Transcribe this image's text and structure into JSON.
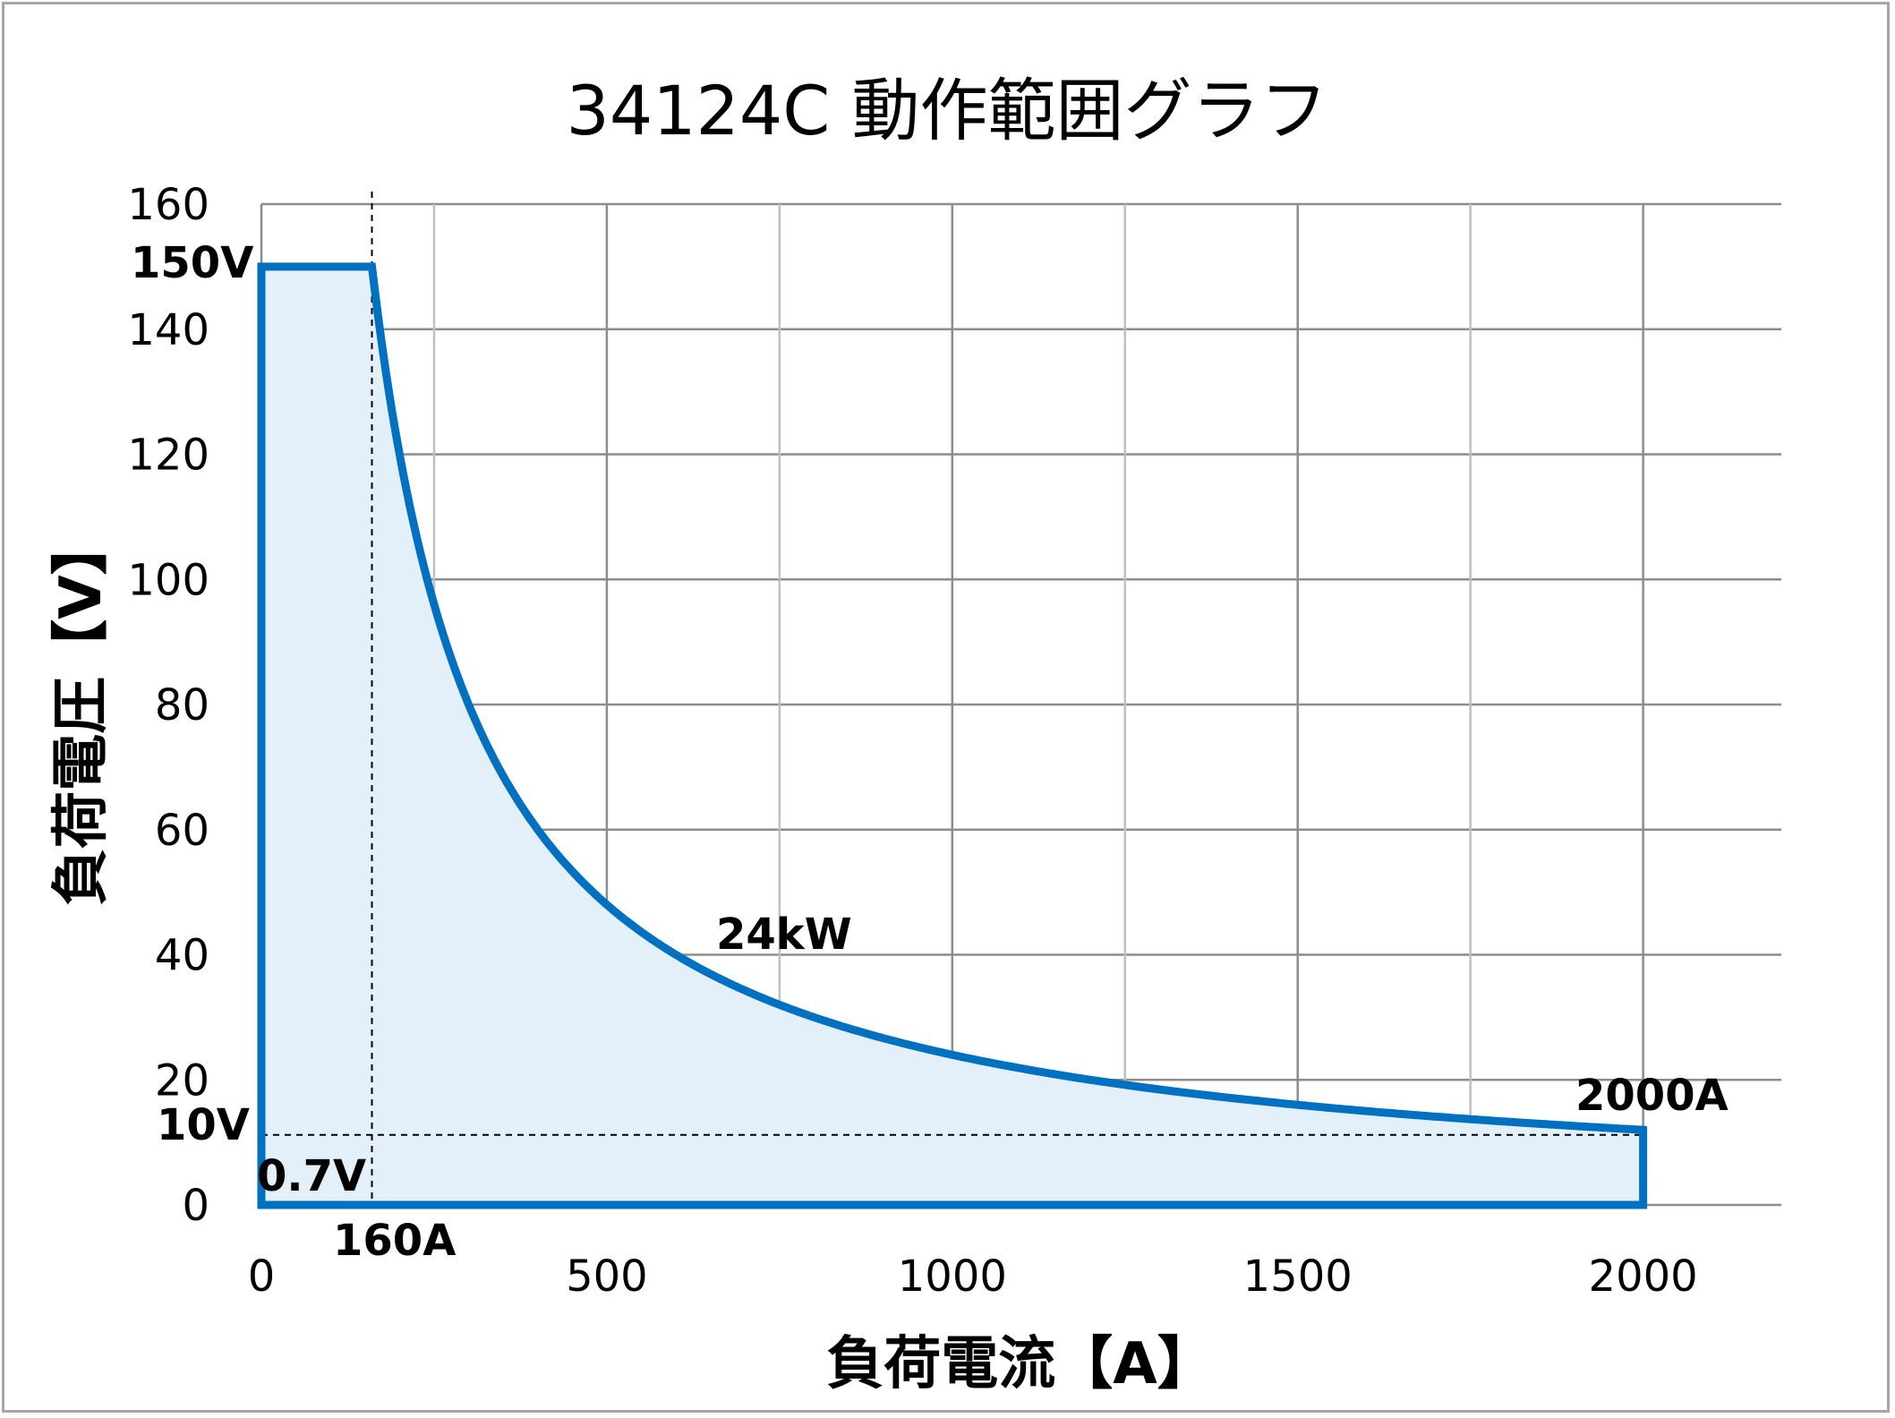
{
  "chart_data": {
    "type": "area",
    "title": "34124C  動作範囲グラフ",
    "xlabel": "負荷電流【A】",
    "ylabel": "負荷電圧【V】",
    "xlim": [
      0,
      2200
    ],
    "ylim": [
      0,
      160
    ],
    "x_major_ticks": [
      0,
      500,
      1000,
      1500,
      2000
    ],
    "x_grid_step": 250,
    "y_ticks": [
      0,
      20,
      40,
      60,
      80,
      100,
      120,
      140,
      160
    ],
    "grid": true,
    "legend": "none",
    "series": [
      {
        "power_limit_w": 24000,
        "max_voltage_v": 150,
        "max_current_a": 2000,
        "min_voltage_v": 0.7,
        "color": "#0070c0",
        "fill": "#e3eff9"
      }
    ],
    "reference_lines": [
      {
        "orientation": "vertical",
        "x": 160
      },
      {
        "orientation": "horizontal",
        "y": 11.2
      }
    ],
    "annotations": [
      {
        "text": "150V",
        "x": 0,
        "y": 150
      },
      {
        "text": "10V",
        "x": 0,
        "y": 10
      },
      {
        "text": "0.7V",
        "x": 0,
        "y": 0.7
      },
      {
        "text": "160A",
        "x": 160,
        "y": 0
      },
      {
        "text": "24kW",
        "x": 640,
        "y": 37.5
      },
      {
        "text": "2000A",
        "x": 2000,
        "y": 12
      }
    ],
    "colors": {
      "curve": "#0070c0",
      "area": "#e3eff9",
      "grid_major": "#8c8c8c",
      "grid_minor": "#c0c0c0"
    }
  }
}
